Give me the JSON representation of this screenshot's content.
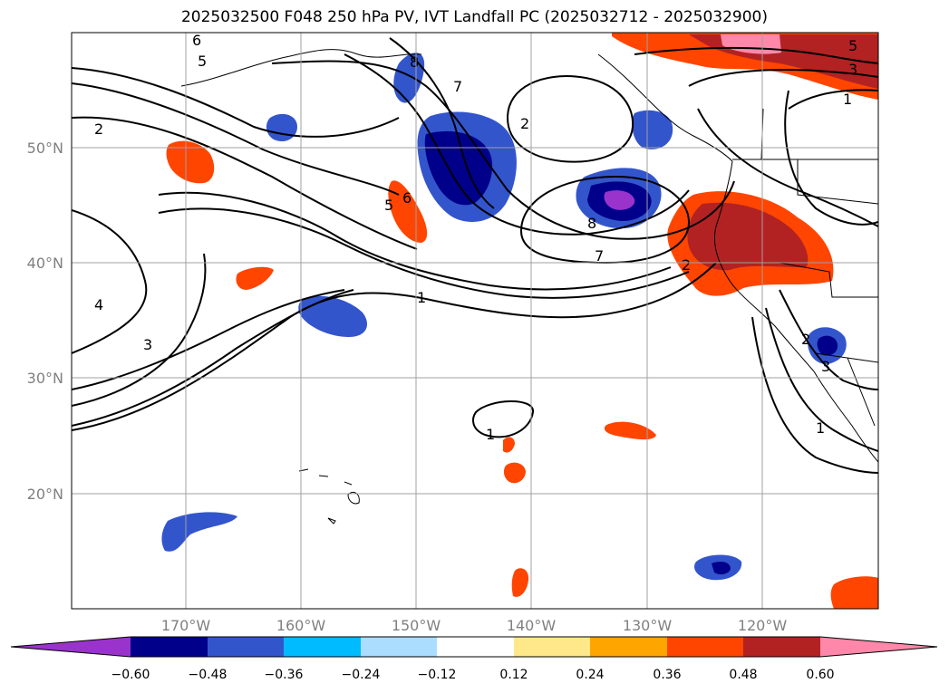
{
  "title": "2025032500 F048 250 hPa PV, IVT Landfall PC (2025032712 - 2025032900)",
  "map": {
    "lon_ticks": [
      "170°W",
      "160°W",
      "150°W",
      "140°W",
      "130°W",
      "120°W"
    ],
    "lat_ticks": [
      "50°N",
      "40°N",
      "30°N",
      "20°N"
    ],
    "gridlines": true
  },
  "colorbar": {
    "colors": [
      "#9933cc",
      "#00008b",
      "#3355cc",
      "#00bbff",
      "#aaddff",
      "#ffffff",
      "#ffe88a",
      "#ffa500",
      "#ff4500",
      "#b22222",
      "#ff88aa"
    ],
    "labels": [
      "−0.60",
      "−0.48",
      "−0.36",
      "−0.24",
      "−0.12",
      "0.12",
      "0.24",
      "0.36",
      "0.48",
      "0.60"
    ]
  },
  "contour_labels": [
    "6",
    "5",
    "2",
    "4",
    "3",
    "1",
    "8",
    "7",
    "2",
    "6",
    "5",
    "7",
    "8",
    "1",
    "1",
    "2",
    "5",
    "3",
    "1",
    "2",
    "3"
  ]
}
